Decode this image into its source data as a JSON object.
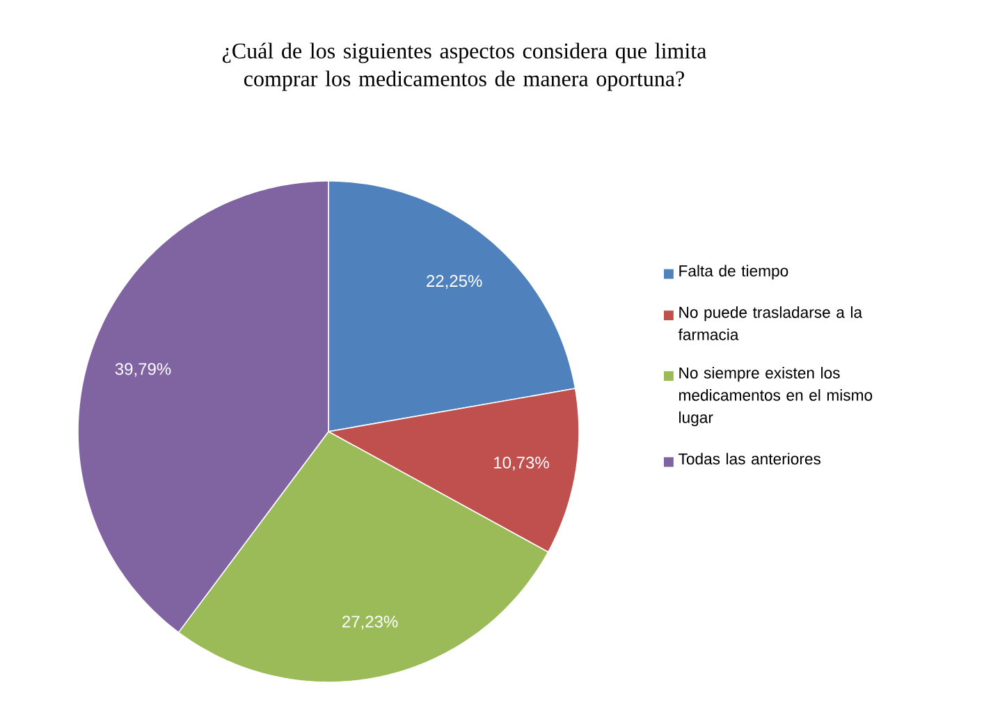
{
  "chart_data": {
    "type": "pie",
    "title": "¿Cuál de los siguientes aspectos considera que limita comprar los medicamentos de manera oportuna?",
    "categories": [
      "Falta de tiempo",
      "No puede trasladarse a la farmacia",
      "No siempre existen los medicamentos en el mismo lugar",
      "Todas las anteriores"
    ],
    "values": [
      22.25,
      10.73,
      27.23,
      39.79
    ],
    "value_labels": [
      "22,25%",
      "10,73%",
      "27,23%",
      "39,79%"
    ],
    "colors": [
      "#4f81bd",
      "#c0504d",
      "#9bbb59",
      "#8064a2"
    ],
    "legend": "right"
  }
}
